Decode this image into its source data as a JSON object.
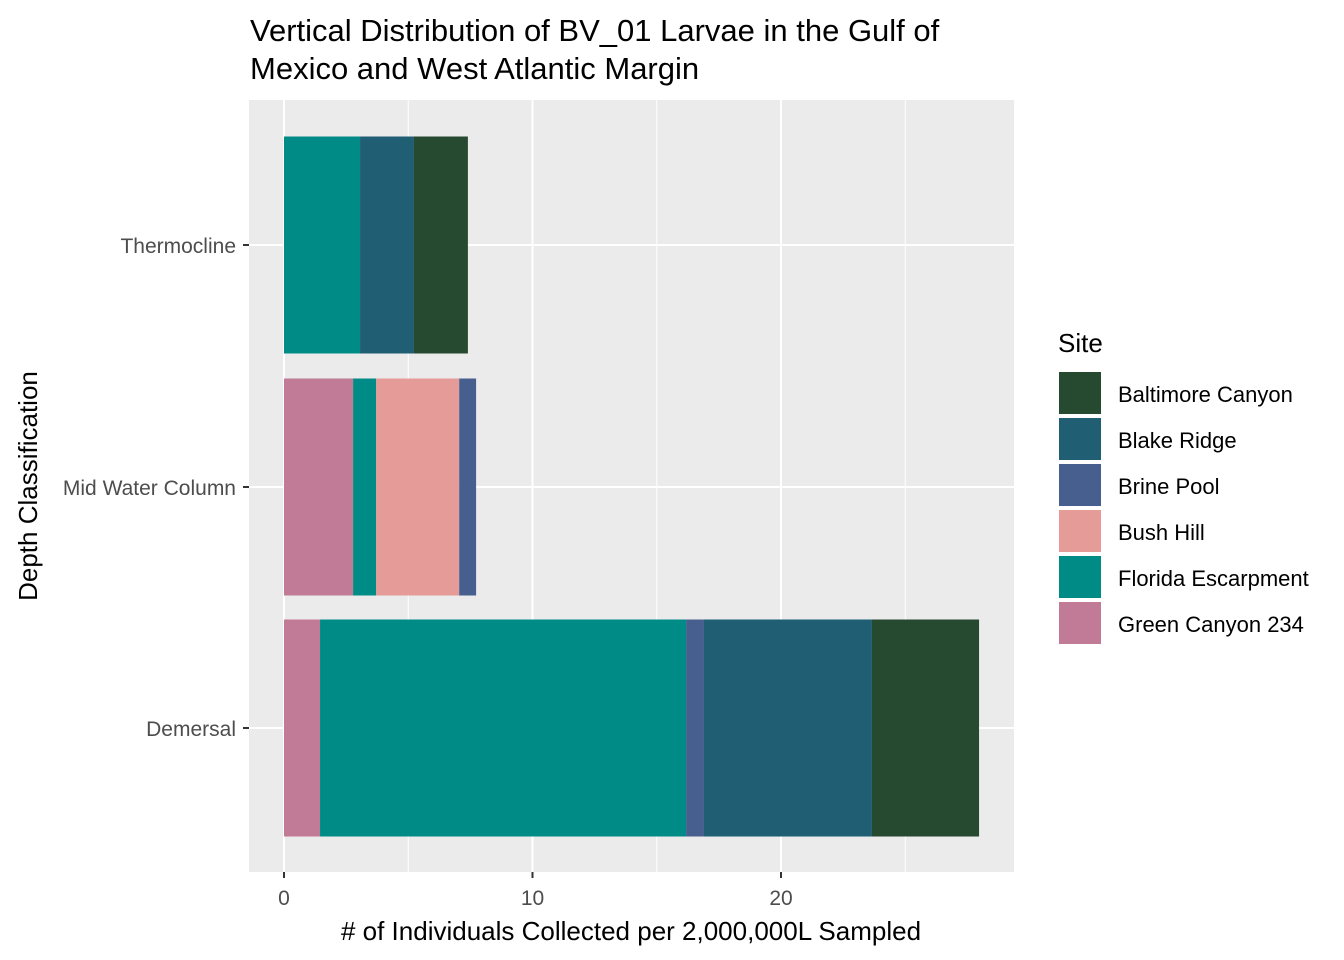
{
  "chart_data": {
    "type": "bar",
    "orientation": "horizontal",
    "stacked": true,
    "title": "Vertical Distribution of BV_01 Larvae in the Gulf of Mexico and West Atlantic Margin",
    "title_lines": [
      "Vertical Distribution of BV_01 Larvae in the Gulf of",
      "Mexico and West Atlantic Margin"
    ],
    "xlabel": "# of Individuals Collected per 2,000,000L Sampled",
    "ylabel": "Depth Classification",
    "xlim": [
      -1.4,
      29.4
    ],
    "xticks": [
      0,
      10,
      20
    ],
    "categories": [
      "Demersal",
      "Mid Water Column",
      "Thermocline"
    ],
    "legend": {
      "title": "Site",
      "position": "right"
    },
    "grid": true,
    "series": [
      {
        "name": "Baltimore Canyon",
        "color": "#254A30",
        "values": [
          4.31,
          0,
          2.17
        ]
      },
      {
        "name": "Blake Ridge",
        "color": "#205E74",
        "values": [
          6.76,
          0,
          2.17
        ]
      },
      {
        "name": "Brine Pool",
        "color": "#465F8F",
        "values": [
          0.72,
          0.68,
          0
        ]
      },
      {
        "name": "Bush Hill",
        "color": "#E59B98",
        "values": [
          0,
          3.34,
          0
        ]
      },
      {
        "name": "Florida Escarpment",
        "color": "#008B87",
        "values": [
          14.73,
          0.93,
          3.06
        ]
      },
      {
        "name": "Green Canyon 234",
        "color": "#C17B96",
        "values": [
          1.45,
          2.78,
          0
        ]
      }
    ]
  }
}
